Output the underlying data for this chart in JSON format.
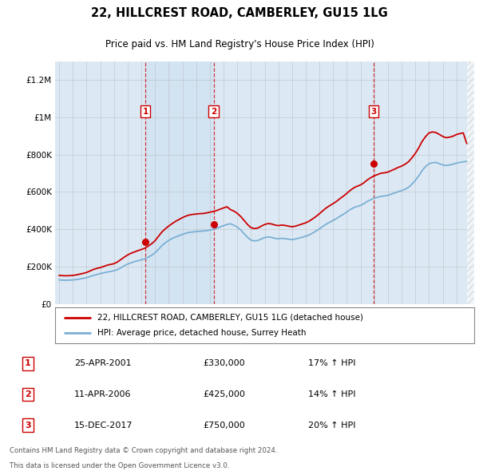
{
  "title": "22, HILLCREST ROAD, CAMBERLEY, GU15 1LG",
  "subtitle": "Price paid vs. HM Land Registry's House Price Index (HPI)",
  "background_color": "#ffffff",
  "plot_bg_color": "#dce9f5",
  "ylabel_ticks": [
    "£0",
    "£200K",
    "£400K",
    "£600K",
    "£800K",
    "£1M",
    "£1.2M"
  ],
  "ytick_values": [
    0,
    200000,
    400000,
    600000,
    800000,
    1000000,
    1200000
  ],
  "xlim_start": 1994.7,
  "xlim_end": 2025.3,
  "ylim": [
    0,
    1300000
  ],
  "purchases": [
    {
      "date_num": 2001.3,
      "price": 330000,
      "label": "1",
      "pct": "17% ↑ HPI",
      "date_str": "25-APR-2001"
    },
    {
      "date_num": 2006.27,
      "price": 425000,
      "label": "2",
      "pct": "14% ↑ HPI",
      "date_str": "11-APR-2006"
    },
    {
      "date_num": 2017.95,
      "price": 750000,
      "label": "3",
      "pct": "20% ↑ HPI",
      "date_str": "15-DEC-2017"
    }
  ],
  "legend_line1": "22, HILLCREST ROAD, CAMBERLEY, GU15 1LG (detached house)",
  "legend_line2": "HPI: Average price, detached house, Surrey Heath",
  "footer1": "Contains HM Land Registry data © Crown copyright and database right 2024.",
  "footer2": "This data is licensed under the Open Government Licence v3.0.",
  "red_color": "#cc0000",
  "blue_color": "#7bafd4",
  "hpi_x": [
    1995.0,
    1995.25,
    1995.5,
    1995.75,
    1996.0,
    1996.25,
    1996.5,
    1996.75,
    1997.0,
    1997.25,
    1997.5,
    1997.75,
    1998.0,
    1998.25,
    1998.5,
    1998.75,
    1999.0,
    1999.25,
    1999.5,
    1999.75,
    2000.0,
    2000.25,
    2000.5,
    2000.75,
    2001.0,
    2001.25,
    2001.5,
    2001.75,
    2002.0,
    2002.25,
    2002.5,
    2002.75,
    2003.0,
    2003.25,
    2003.5,
    2003.75,
    2004.0,
    2004.25,
    2004.5,
    2004.75,
    2005.0,
    2005.25,
    2005.5,
    2005.75,
    2006.0,
    2006.25,
    2006.5,
    2006.75,
    2007.0,
    2007.25,
    2007.5,
    2007.75,
    2008.0,
    2008.25,
    2008.5,
    2008.75,
    2009.0,
    2009.25,
    2009.5,
    2009.75,
    2010.0,
    2010.25,
    2010.5,
    2010.75,
    2011.0,
    2011.25,
    2011.5,
    2011.75,
    2012.0,
    2012.25,
    2012.5,
    2012.75,
    2013.0,
    2013.25,
    2013.5,
    2013.75,
    2014.0,
    2014.25,
    2014.5,
    2014.75,
    2015.0,
    2015.25,
    2015.5,
    2015.75,
    2016.0,
    2016.25,
    2016.5,
    2016.75,
    2017.0,
    2017.25,
    2017.5,
    2017.75,
    2018.0,
    2018.25,
    2018.5,
    2018.75,
    2019.0,
    2019.25,
    2019.5,
    2019.75,
    2020.0,
    2020.25,
    2020.5,
    2020.75,
    2021.0,
    2021.25,
    2021.5,
    2021.75,
    2022.0,
    2022.25,
    2022.5,
    2022.75,
    2023.0,
    2023.25,
    2023.5,
    2023.75,
    2024.0,
    2024.25,
    2024.5,
    2024.75
  ],
  "hpi_y": [
    128000,
    127000,
    126500,
    127000,
    128000,
    130000,
    133000,
    136000,
    140000,
    146000,
    152000,
    157000,
    162000,
    166000,
    170000,
    173000,
    177000,
    183000,
    193000,
    204000,
    213000,
    220000,
    226000,
    231000,
    236000,
    241000,
    250000,
    260000,
    274000,
    292000,
    312000,
    327000,
    340000,
    350000,
    358000,
    365000,
    372000,
    378000,
    383000,
    385000,
    387000,
    389000,
    390000,
    392000,
    395000,
    400000,
    405000,
    412000,
    419000,
    425000,
    429000,
    421000,
    411000,
    396000,
    376000,
    356000,
    341000,
    337000,
    339000,
    347000,
    355000,
    358000,
    356000,
    351000,
    348000,
    351000,
    349000,
    346000,
    344000,
    347000,
    352000,
    357000,
    362000,
    369000,
    379000,
    390000,
    402000,
    415000,
    427000,
    437000,
    447000,
    457000,
    469000,
    480000,
    492000,
    505000,
    515000,
    522000,
    527000,
    537000,
    549000,
    558000,
    566000,
    571000,
    576000,
    578000,
    581000,
    588000,
    594000,
    601000,
    606000,
    614000,
    624000,
    641000,
    661000,
    686000,
    714000,
    736000,
    751000,
    756000,
    758000,
    751000,
    744000,
    741000,
    744000,
    748000,
    754000,
    758000,
    761000,
    763000
  ],
  "red_y": [
    152000,
    151000,
    150000,
    151000,
    152000,
    155000,
    159000,
    163000,
    168000,
    176000,
    184000,
    190000,
    194000,
    200000,
    207000,
    211000,
    215000,
    224000,
    237000,
    250000,
    262000,
    271000,
    278000,
    285000,
    291000,
    298000,
    309000,
    322000,
    338000,
    362000,
    385000,
    402000,
    417000,
    430000,
    442000,
    452000,
    462000,
    470000,
    476000,
    479000,
    481000,
    483000,
    484000,
    487000,
    491000,
    495000,
    500000,
    507000,
    514000,
    520000,
    505000,
    497000,
    485000,
    468000,
    447000,
    425000,
    408000,
    403000,
    406000,
    416000,
    425000,
    430000,
    428000,
    422000,
    419000,
    422000,
    420000,
    416000,
    413000,
    416000,
    422000,
    428000,
    434000,
    443000,
    455000,
    468000,
    483000,
    499000,
    514000,
    526000,
    537000,
    549000,
    564000,
    577000,
    592000,
    608000,
    621000,
    630000,
    637000,
    649000,
    664000,
    676000,
    686000,
    693000,
    700000,
    702000,
    706000,
    714000,
    722000,
    731000,
    738000,
    748000,
    761000,
    782000,
    806000,
    836000,
    871000,
    896000,
    916000,
    921000,
    918000,
    908000,
    897000,
    890000,
    893000,
    898000,
    907000,
    912000,
    916000,
    860000
  ]
}
